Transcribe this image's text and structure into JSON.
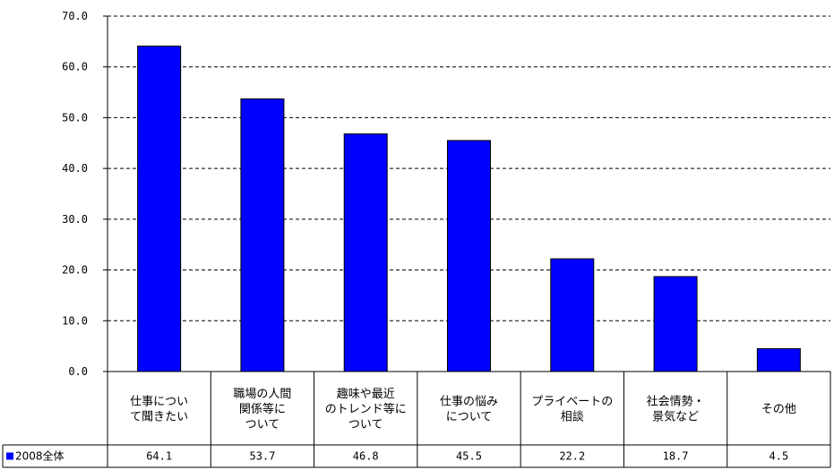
{
  "chart_data": {
    "type": "bar",
    "title": "",
    "xlabel": "",
    "ylabel": "",
    "ylim": [
      0,
      70
    ],
    "yticks": [
      "0.0",
      "10.0",
      "20.0",
      "30.0",
      "40.0",
      "50.0",
      "60.0",
      "70.0"
    ],
    "grid": true,
    "categories": [
      [
        "仕事につい",
        "て聞きたい"
      ],
      [
        "職場の人間",
        "関係等に",
        "ついて"
      ],
      [
        "趣味や最近",
        "のトレンド等に",
        "ついて"
      ],
      [
        "仕事の悩み",
        "について"
      ],
      [
        "プライベートの",
        "相談"
      ],
      [
        "社会情勢・",
        "景気など"
      ],
      [
        "その他"
      ]
    ],
    "series": [
      {
        "name": "2008全体",
        "color": "#0000ff",
        "values": [
          64.1,
          53.7,
          46.8,
          45.5,
          22.2,
          18.7,
          4.5
        ],
        "labels": [
          "64.1",
          "53.7",
          "46.8",
          "45.5",
          "22.2",
          "18.7",
          "4.5"
        ]
      }
    ],
    "legend_placement": "data-table-left"
  }
}
